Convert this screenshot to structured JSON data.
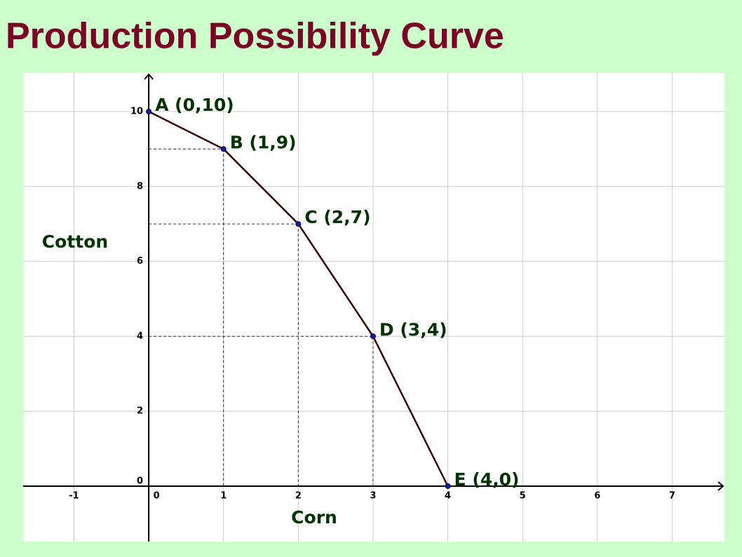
{
  "chart_data": {
    "type": "line",
    "title": "Production Possibility Curve",
    "x_label": "Corn",
    "y_label": "Cotton",
    "x": [
      0,
      1,
      2,
      3,
      4
    ],
    "series": [
      {
        "color": "#330000",
        "values": [
          10,
          9,
          7,
          4,
          0
        ]
      }
    ],
    "point_labels": [
      "A (0,10)",
      "B (1,9)",
      "C (2,7)",
      "D (3,4)",
      "E (4,0)"
    ],
    "xlim": [
      -1.68,
      7.7
    ],
    "ylim": [
      -1.48,
      11.03
    ],
    "xticks": [
      -1,
      0,
      1,
      2,
      3,
      4,
      5,
      6,
      7
    ],
    "yticks": [
      0,
      2,
      4,
      6,
      8,
      10
    ],
    "grid": true
  }
}
